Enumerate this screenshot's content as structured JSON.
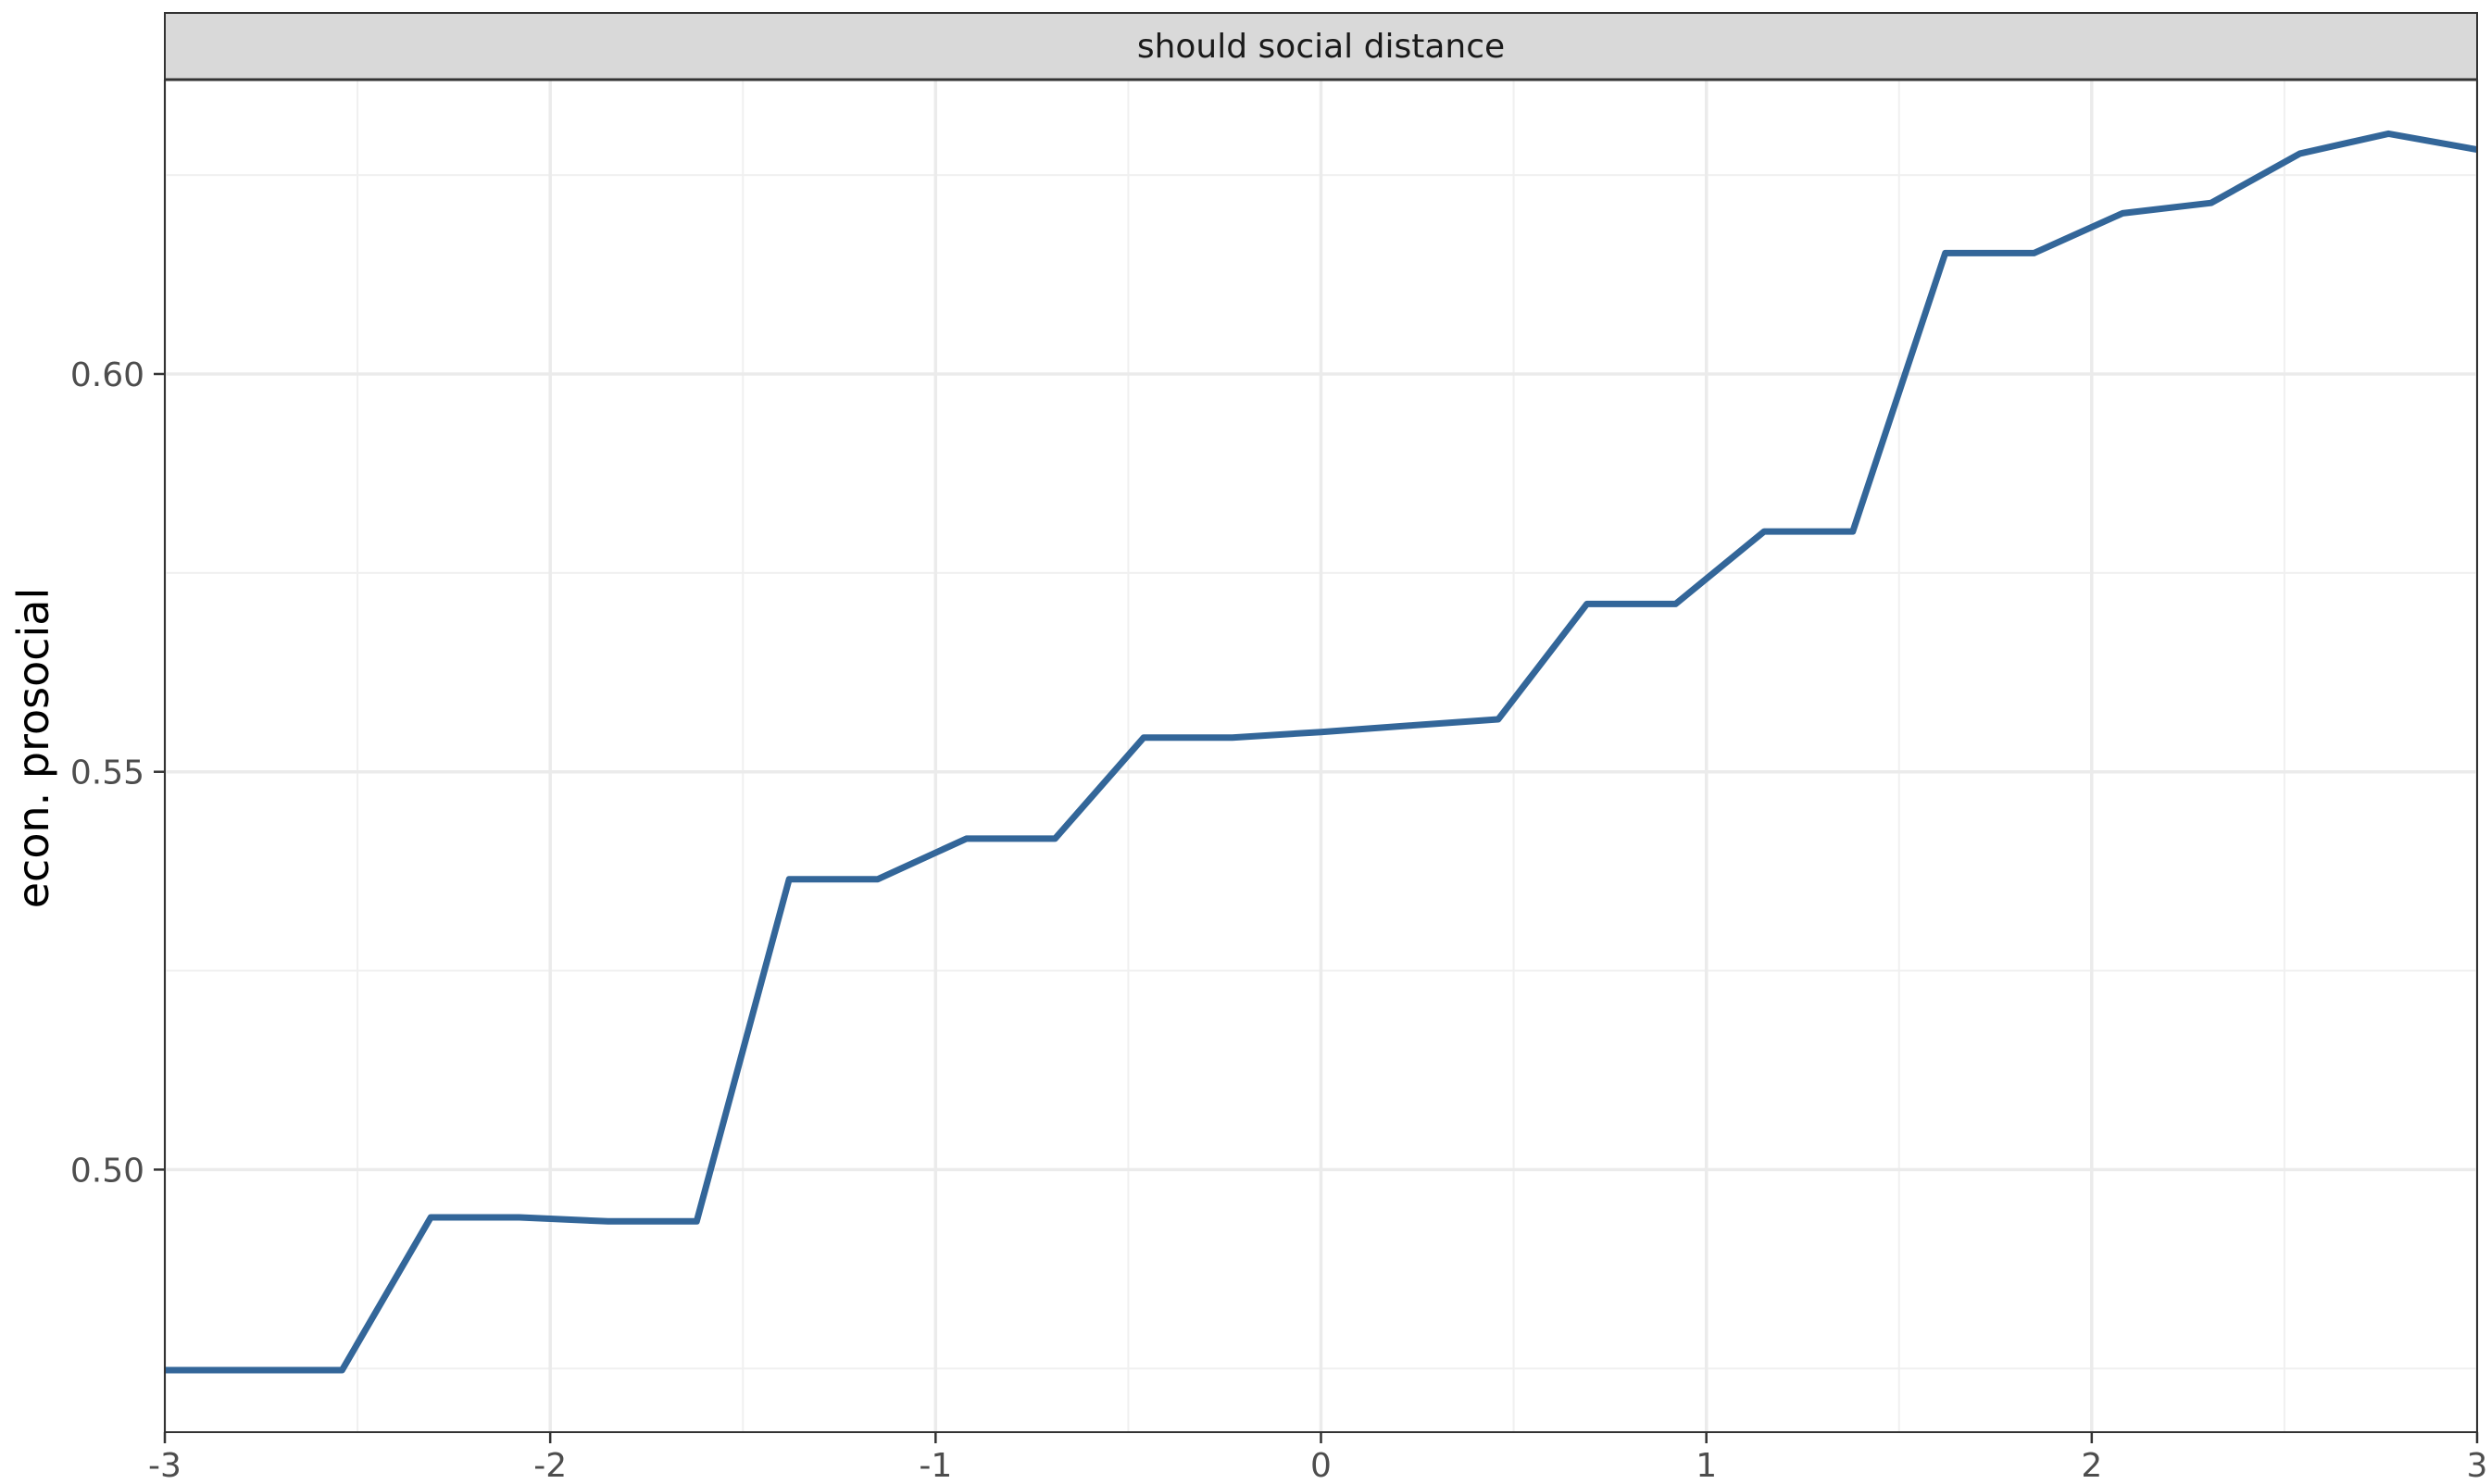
{
  "chart_data": {
    "type": "line",
    "facet_label": "should social distance",
    "xlabel": "",
    "ylabel": "econ. prosocial",
    "xlim": [
      -3,
      3
    ],
    "ylim": [
      0.467,
      0.637
    ],
    "x_ticks": [
      -3,
      -2,
      -1,
      0,
      1,
      2,
      3
    ],
    "x_tick_labels": [
      "-3",
      "-2",
      "-1",
      "0",
      "1",
      "2",
      "3"
    ],
    "y_ticks": [
      0.5,
      0.55,
      0.6
    ],
    "y_tick_labels": [
      "0.50",
      "0.55",
      "0.60"
    ],
    "y_minor_ticks": [
      0.475,
      0.525,
      0.575,
      0.625
    ],
    "grid": true,
    "line_color": "#336699",
    "series": [
      {
        "x": [
          -3.0,
          -2.54,
          -2.31,
          -2.08,
          -1.85,
          -1.62,
          -1.38,
          -1.15,
          -0.92,
          -0.69,
          -0.46,
          -0.23,
          0.0,
          0.23,
          0.46,
          0.69,
          0.92,
          1.15,
          1.38,
          1.62,
          1.85,
          2.08,
          2.31,
          2.54,
          2.77,
          3.0
        ],
        "y": [
          0.4748,
          0.4748,
          0.494,
          0.494,
          0.4935,
          0.4935,
          0.5365,
          0.5365,
          0.5416,
          0.5416,
          0.5543,
          0.5543,
          0.555,
          0.5558,
          0.5566,
          0.5711,
          0.5711,
          0.5802,
          0.5802,
          0.6152,
          0.6152,
          0.6202,
          0.6215,
          0.6277,
          0.6302,
          0.6282
        ]
      }
    ]
  }
}
